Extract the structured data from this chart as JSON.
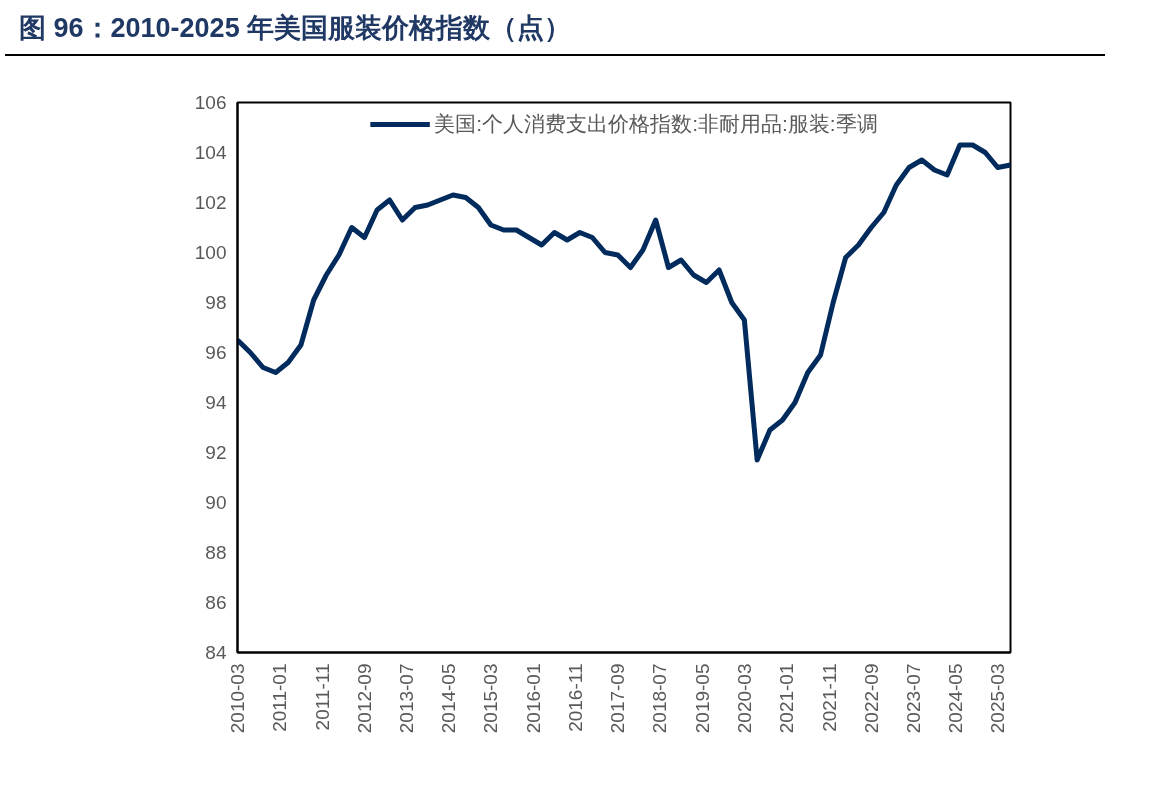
{
  "chart_data": {
    "type": "line",
    "title": "图 96：2010-2025 年美国服装价格指数（点）",
    "x": [
      "2010-03",
      "2010-06",
      "2010-09",
      "2010-12",
      "2011-03",
      "2011-06",
      "2011-09",
      "2011-12",
      "2012-03",
      "2012-06",
      "2012-09",
      "2012-12",
      "2013-03",
      "2013-06",
      "2013-09",
      "2013-12",
      "2014-03",
      "2014-06",
      "2014-09",
      "2014-12",
      "2015-03",
      "2015-06",
      "2015-09",
      "2015-12",
      "2016-03",
      "2016-06",
      "2016-09",
      "2016-12",
      "2017-03",
      "2017-06",
      "2017-09",
      "2017-12",
      "2018-03",
      "2018-06",
      "2018-09",
      "2018-12",
      "2019-03",
      "2019-06",
      "2019-09",
      "2019-12",
      "2020-03",
      "2020-06",
      "2020-09",
      "2020-12",
      "2021-03",
      "2021-06",
      "2021-09",
      "2021-12",
      "2022-03",
      "2022-06",
      "2022-09",
      "2022-12",
      "2023-03",
      "2023-06",
      "2023-09",
      "2023-12",
      "2024-03",
      "2024-06",
      "2024-09",
      "2024-12",
      "2025-03",
      "2025-06"
    ],
    "series": [
      {
        "name": "美国:个人消费支出价格指数:非耐用品:服装:季调",
        "color": "#002b5c",
        "values": [
          96.5,
          96.0,
          95.4,
          95.2,
          95.6,
          96.3,
          98.1,
          99.1,
          99.9,
          101.0,
          100.6,
          101.7,
          102.1,
          101.3,
          101.8,
          101.9,
          102.1,
          102.3,
          102.2,
          101.8,
          101.1,
          100.9,
          100.9,
          100.6,
          100.3,
          100.8,
          100.5,
          100.8,
          100.6,
          100.0,
          99.9,
          99.4,
          100.1,
          101.3,
          99.4,
          99.7,
          99.1,
          98.8,
          99.3,
          98.0,
          97.3,
          91.7,
          92.9,
          93.3,
          94.0,
          95.2,
          95.9,
          98.0,
          99.8,
          100.3,
          101.0,
          101.6,
          102.7,
          103.4,
          103.7,
          103.3,
          103.1,
          104.3,
          104.3,
          104.0,
          103.4,
          103.5
        ]
      }
    ],
    "xlim": [
      "2010-03",
      "2025-06"
    ],
    "xticks": [
      "2010-03",
      "2011-01",
      "2011-11",
      "2012-09",
      "2013-07",
      "2014-05",
      "2015-03",
      "2016-01",
      "2016-11",
      "2017-09",
      "2018-07",
      "2019-05",
      "2020-03",
      "2021-01",
      "2021-11",
      "2022-09",
      "2023-07",
      "2024-05",
      "2025-03"
    ],
    "ylim": [
      84,
      106
    ],
    "yticks": [
      84,
      86,
      88,
      90,
      92,
      94,
      96,
      98,
      100,
      102,
      104,
      106
    ],
    "grid": false,
    "legend": "top",
    "line_style": "solid",
    "marker": "none"
  }
}
